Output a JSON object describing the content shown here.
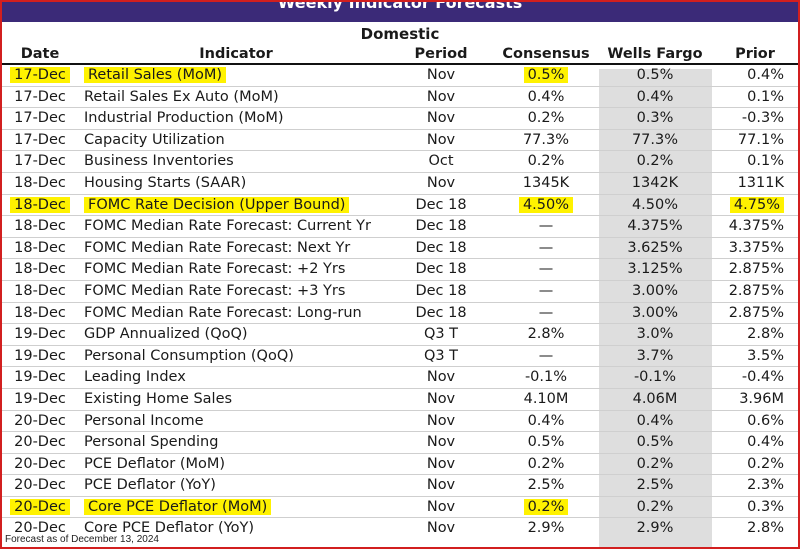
{
  "title": "Weekly Indicator Forecasts",
  "section": "Domestic",
  "columns": [
    "Date",
    "Indicator",
    "Period",
    "Consensus",
    "Wells Fargo",
    "Prior"
  ],
  "rows": [
    {
      "date": "17-Dec",
      "indicator": "Retail Sales (MoM)",
      "period": "Nov",
      "consensus": "0.5%",
      "wells_fargo": "0.5%",
      "prior": "0.4%"
    },
    {
      "date": "17-Dec",
      "indicator": "Retail Sales Ex Auto (MoM)",
      "period": "Nov",
      "consensus": "0.4%",
      "wells_fargo": "0.4%",
      "prior": "0.1%"
    },
    {
      "date": "17-Dec",
      "indicator": "Industrial Production (MoM)",
      "period": "Nov",
      "consensus": "0.2%",
      "wells_fargo": "0.3%",
      "prior": "-0.3%"
    },
    {
      "date": "17-Dec",
      "indicator": "Capacity Utilization",
      "period": "Nov",
      "consensus": "77.3%",
      "wells_fargo": "77.3%",
      "prior": "77.1%"
    },
    {
      "date": "17-Dec",
      "indicator": "Business Inventories",
      "period": "Oct",
      "consensus": "0.2%",
      "wells_fargo": "0.2%",
      "prior": "0.1%"
    },
    {
      "date": "18-Dec",
      "indicator": "Housing Starts (SAAR)",
      "period": "Nov",
      "consensus": "1345K",
      "wells_fargo": "1342K",
      "prior": "1311K"
    },
    {
      "date": "18-Dec",
      "indicator": "FOMC Rate Decision (Upper Bound)",
      "period": "Dec 18",
      "consensus": "4.50%",
      "wells_fargo": "4.50%",
      "prior": "4.75%"
    },
    {
      "date": "18-Dec",
      "indicator": "FOMC Median Rate Forecast: Current Yr",
      "period": "Dec 18",
      "consensus": "—",
      "wells_fargo": "4.375%",
      "prior": "4.375%"
    },
    {
      "date": "18-Dec",
      "indicator": "FOMC Median Rate Forecast: Next Yr",
      "period": "Dec 18",
      "consensus": "—",
      "wells_fargo": "3.625%",
      "prior": "3.375%"
    },
    {
      "date": "18-Dec",
      "indicator": "FOMC Median Rate Forecast: +2 Yrs",
      "period": "Dec 18",
      "consensus": "—",
      "wells_fargo": "3.125%",
      "prior": "2.875%"
    },
    {
      "date": "18-Dec",
      "indicator": "FOMC Median Rate Forecast: +3 Yrs",
      "period": "Dec 18",
      "consensus": "—",
      "wells_fargo": "3.00%",
      "prior": "2.875%"
    },
    {
      "date": "18-Dec",
      "indicator": "FOMC Median Rate Forecast: Long-run",
      "period": "Dec 18",
      "consensus": "—",
      "wells_fargo": "3.00%",
      "prior": "2.875%"
    },
    {
      "date": "19-Dec",
      "indicator": "GDP Annualized (QoQ)",
      "period": "Q3 T",
      "consensus": "2.8%",
      "wells_fargo": "3.0%",
      "prior": "2.8%"
    },
    {
      "date": "19-Dec",
      "indicator": "Personal Consumption (QoQ)",
      "period": "Q3 T",
      "consensus": "—",
      "wells_fargo": "3.7%",
      "prior": "3.5%"
    },
    {
      "date": "19-Dec",
      "indicator": "Leading Index",
      "period": "Nov",
      "consensus": "-0.1%",
      "wells_fargo": "-0.1%",
      "prior": "-0.4%"
    },
    {
      "date": "19-Dec",
      "indicator": "Existing Home Sales",
      "period": "Nov",
      "consensus": "4.10M",
      "wells_fargo": "4.06M",
      "prior": "3.96M"
    },
    {
      "date": "20-Dec",
      "indicator": "Personal Income",
      "period": "Nov",
      "consensus": "0.4%",
      "wells_fargo": "0.4%",
      "prior": "0.6%"
    },
    {
      "date": "20-Dec",
      "indicator": "Personal Spending",
      "period": "Nov",
      "consensus": "0.5%",
      "wells_fargo": "0.5%",
      "prior": "0.4%"
    },
    {
      "date": "20-Dec",
      "indicator": "PCE Deflator (MoM)",
      "period": "Nov",
      "consensus": "0.2%",
      "wells_fargo": "0.2%",
      "prior": "0.2%"
    },
    {
      "date": "20-Dec",
      "indicator": "PCE Deflator (YoY)",
      "period": "Nov",
      "consensus": "2.5%",
      "wells_fargo": "2.5%",
      "prior": "2.3%"
    },
    {
      "date": "20-Dec",
      "indicator": "Core PCE Deflator (MoM)",
      "period": "Nov",
      "consensus": "0.2%",
      "wells_fargo": "0.2%",
      "prior": "0.3%"
    },
    {
      "date": "20-Dec",
      "indicator": "Core PCE Deflator (YoY)",
      "period": "Nov",
      "consensus": "2.9%",
      "wells_fargo": "2.9%",
      "prior": "2.8%"
    }
  ],
  "highlights": [
    {
      "row": 0,
      "cols": [
        "date",
        "indicator",
        "consensus"
      ]
    },
    {
      "row": 6,
      "cols": [
        "date",
        "indicator",
        "consensus",
        "prior"
      ]
    },
    {
      "row": 20,
      "cols": [
        "date",
        "indicator",
        "consensus"
      ]
    }
  ],
  "highlight_color": "#fff200",
  "footer": "Forecast as of December 13, 2024"
}
